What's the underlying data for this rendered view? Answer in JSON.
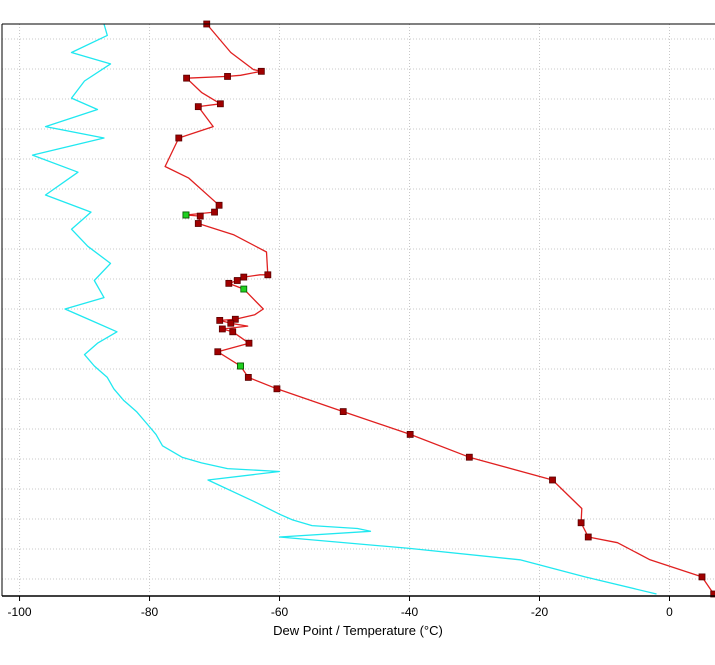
{
  "chart_data": {
    "type": "line",
    "xlabel": "Dew Point / Temperature (°C)",
    "xlim": [
      -102.7,
      7
    ],
    "x_ticks": [
      -100,
      -80,
      -60,
      -40,
      -20,
      0
    ],
    "x_tick_labels": [
      "-100",
      "-80",
      "-60",
      "-40",
      "-20",
      "0"
    ],
    "grid": true,
    "y_gridline_count": 19,
    "colors": {
      "temperature": "#e02020",
      "temperature_marker": "#a00000",
      "dew_point": "#20e8f0",
      "flagged_marker": "#20d020",
      "grid": "#c8c8c8"
    },
    "series": [
      {
        "key": "temperature",
        "y": [
          0.0,
          0.05,
          0.08,
          0.083,
          0.09,
          0.092,
          0.095,
          0.12,
          0.14,
          0.145,
          0.18,
          0.2,
          0.25,
          0.27,
          0.318,
          0.33,
          0.335,
          0.337,
          0.35,
          0.37,
          0.4,
          0.44,
          0.44,
          0.444,
          0.45,
          0.455,
          0.465,
          0.5,
          0.51,
          0.518,
          0.52,
          0.525,
          0.53,
          0.535,
          0.54,
          0.56,
          0.575,
          0.6,
          0.62,
          0.64,
          0.68,
          0.72,
          0.76,
          0.8,
          0.85,
          0.875,
          0.9,
          0.91,
          0.94,
          0.97,
          1.0
        ],
        "x": [
          -71.2,
          -67.5,
          -64.0,
          -62.8,
          -66.0,
          -68.0,
          -74.3,
          -72.0,
          -69.1,
          -72.5,
          -70.2,
          -75.5,
          -77.6,
          -74.0,
          -69.3,
          -70.0,
          -74.4,
          -72.2,
          -72.5,
          -67.0,
          -62.0,
          -61.8,
          -63.0,
          -65.5,
          -66.5,
          -67.8,
          -65.5,
          -62.5,
          -63.8,
          -66.8,
          -69.2,
          -67.5,
          -64.9,
          -68.8,
          -67.2,
          -64.7,
          -69.5,
          -66.0,
          -64.8,
          -60.4,
          -50.2,
          -39.9,
          -30.8,
          -18.0,
          -13.5,
          -13.6,
          -12.5,
          -8.0,
          -3.0,
          5.0,
          6.8
        ]
      },
      {
        "key": "dew_point",
        "y": [
          0.0,
          0.02,
          0.05,
          0.07,
          0.1,
          0.13,
          0.15,
          0.18,
          0.2,
          0.23,
          0.26,
          0.3,
          0.33,
          0.36,
          0.39,
          0.42,
          0.45,
          0.48,
          0.5,
          0.52,
          0.54,
          0.56,
          0.58,
          0.6,
          0.62,
          0.64,
          0.66,
          0.68,
          0.7,
          0.72,
          0.74,
          0.76,
          0.77,
          0.78,
          0.785,
          0.8,
          0.84,
          0.86,
          0.87,
          0.88,
          0.885,
          0.89,
          0.9,
          0.92,
          0.94,
          0.97,
          1.0
        ],
        "x": [
          -87.0,
          -86.5,
          -92.0,
          -86.0,
          -90.0,
          -92.0,
          -88.0,
          -96.0,
          -87.0,
          -98.0,
          -91.0,
          -96.0,
          -89.0,
          -92.0,
          -89.5,
          -86.0,
          -88.5,
          -87.0,
          -93.0,
          -89.0,
          -85.0,
          -88.0,
          -90.0,
          -88.5,
          -86.5,
          -85.5,
          -84.0,
          -82.0,
          -80.5,
          -79.0,
          -78.0,
          -75.0,
          -72.0,
          -68.0,
          -60.0,
          -71.0,
          -63.5,
          -60.0,
          -58.0,
          -55.0,
          -48.0,
          -46.0,
          -60.0,
          -40.0,
          -23.0,
          -13.0,
          -2.0
        ]
      }
    ],
    "temperature_marker_y": [
      0.0,
      0.083,
      0.092,
      0.095,
      0.14,
      0.145,
      0.2,
      0.318,
      0.33,
      0.335,
      0.337,
      0.35,
      0.44,
      0.444,
      0.45,
      0.455,
      0.518,
      0.52,
      0.525,
      0.535,
      0.54,
      0.56,
      0.575,
      0.6,
      0.62,
      0.64,
      0.68,
      0.72,
      0.76,
      0.8,
      0.875,
      0.9,
      0.97,
      1.0
    ],
    "flagged_marker_y": [
      0.335,
      0.465,
      0.6
    ]
  }
}
